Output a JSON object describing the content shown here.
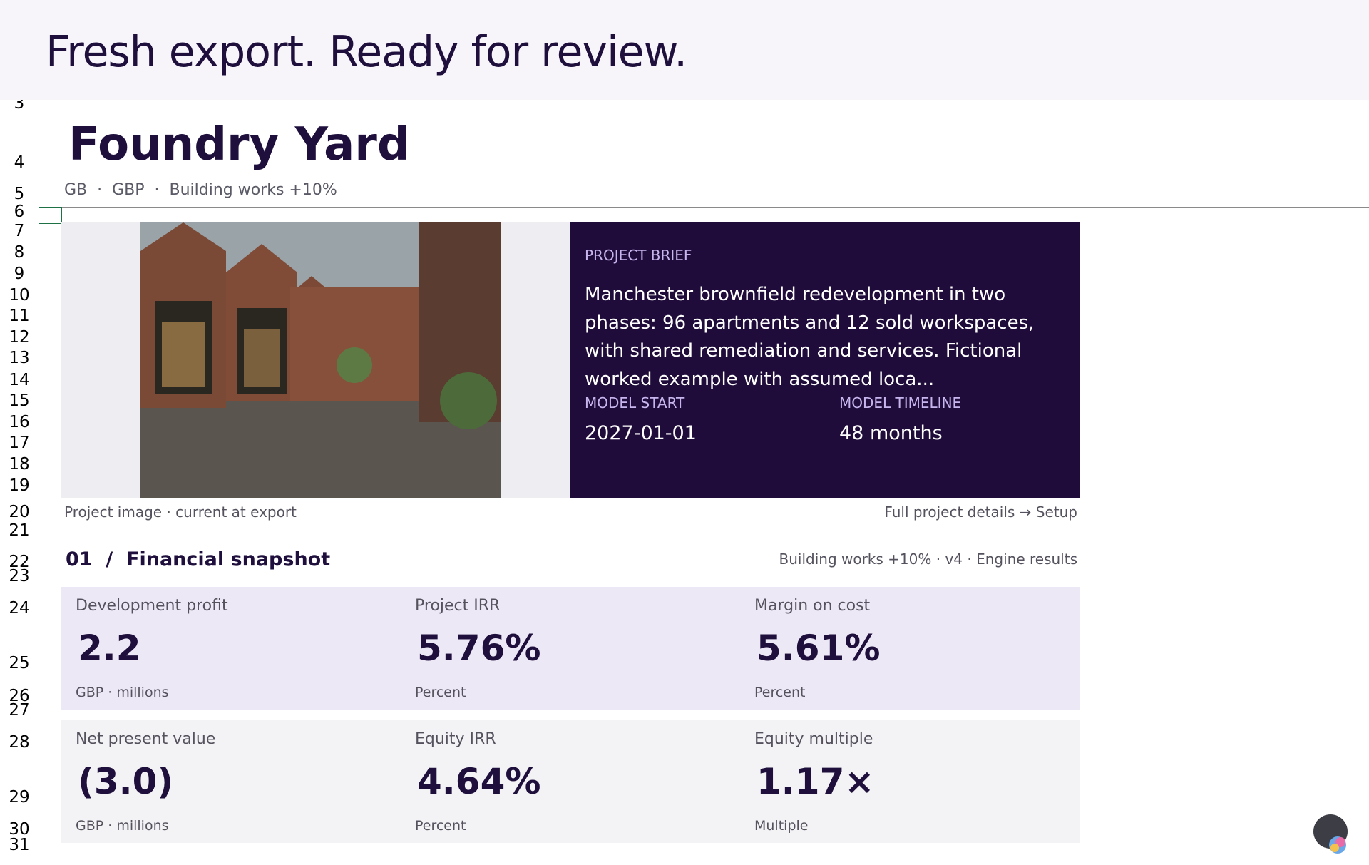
{
  "banner": {
    "title": "Fresh export. Ready for review."
  },
  "sheet": {
    "row_numbers": [
      3,
      4,
      5,
      6,
      7,
      8,
      9,
      10,
      11,
      12,
      13,
      14,
      15,
      16,
      17,
      18,
      19,
      20,
      21,
      22,
      23,
      24,
      25,
      26,
      27,
      28,
      29,
      30,
      31
    ]
  },
  "header": {
    "title": "Foundry Yard",
    "subtitle": "GB  ·  GBP  ·  Building works +10%"
  },
  "brief": {
    "label": "PROJECT BRIEF",
    "text": "Manchester brownfield redevelopment in two phases: 96 apartments and 12 sold workspaces, with shared remediation and services. Fictional worked example with assumed loca...",
    "fields": [
      {
        "label": "MODEL START",
        "value": "2027-01-01"
      },
      {
        "label": "MODEL TIMELINE",
        "value": "48 months"
      }
    ]
  },
  "image": {
    "caption": "Project image · current at export",
    "link": "Full project details → Setup"
  },
  "section": {
    "title": "01  /  Financial snapshot",
    "meta": "Building works +10% · v4 · Engine results"
  },
  "metrics": [
    [
      {
        "label": "Development profit",
        "value": "2.2",
        "unit": "GBP · millions"
      },
      {
        "label": "Project IRR",
        "value": "5.76%",
        "unit": "Percent"
      },
      {
        "label": "Margin on cost",
        "value": "5.61%",
        "unit": "Percent"
      }
    ],
    [
      {
        "label": "Net present value",
        "value": "(3.0)",
        "unit": "GBP · millions"
      },
      {
        "label": "Equity IRR",
        "value": "4.64%",
        "unit": "Percent"
      },
      {
        "label": "Equity multiple",
        "value": "1.17×",
        "unit": "Multiple"
      }
    ]
  ]
}
